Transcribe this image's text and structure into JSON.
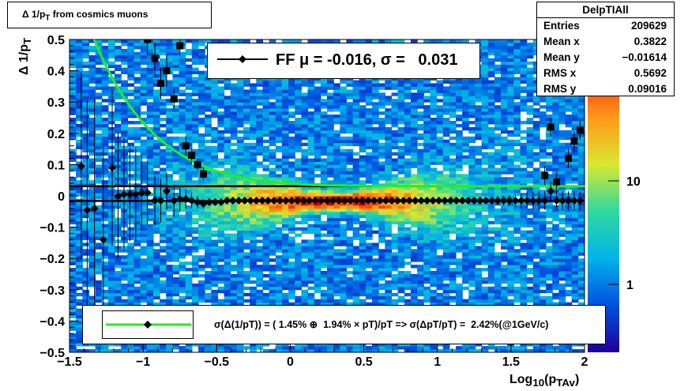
{
  "title": "Δ 1/p<sub>T</sub> from cosmics muons",
  "stats": {
    "name": "DelpTIAll",
    "rows": [
      {
        "label": "Entries",
        "value": "209629"
      },
      {
        "label": "Mean x",
        "value": "0.3822"
      },
      {
        "label": "Mean y",
        "value": "−0.01614"
      },
      {
        "label": "RMS x",
        "value": "0.5692"
      },
      {
        "label": "RMS y",
        "value": "0.09016"
      }
    ]
  },
  "ff_legend": "FF μ = -0.016, σ =   0.031",
  "res_legend": "σ(Δ(1/pT)) = ( 1.45% ⊕  1.94% × pT)/pT => σ(ΔpT/pT) =  2.42%(@1GeV/c)",
  "colors": {
    "sigma_curve": "#22ee22",
    "markers": "#000000"
  },
  "chart_data": {
    "type": "heatmap",
    "xlabel": "Log<sub>10</sub>(p<sub>TAv</sub>)",
    "ylabel": "Δ 1/p<sub>T</sub>",
    "xlim": [
      -1.5,
      2
    ],
    "ylim": [
      -0.5,
      0.5
    ],
    "x_ticks": [
      "−1.5",
      "−1",
      "−0.5",
      "0",
      "0.5",
      "1",
      "1.5",
      "2"
    ],
    "y_ticks": [
      "−0.5",
      "−0.4",
      "−0.3",
      "−0.2",
      "−0.1",
      "0",
      "0.1",
      "0.2",
      "0.3",
      "0.4",
      "0.5"
    ],
    "z_scale": "log",
    "z_ticks": [
      "1",
      "10"
    ],
    "mean_line_y": -0.016,
    "sigma_line_y": 0.031,
    "mean_points": {
      "x": [
        -1.42,
        -1.38,
        -1.33,
        -1.27,
        -1.21,
        -1.17,
        -1.13,
        -1.09,
        -1.05,
        -1.01,
        -0.97,
        -0.92,
        -0.88,
        -0.84,
        -0.79,
        -0.75,
        -0.71,
        -0.67,
        -0.63,
        -0.59,
        -0.55,
        -0.51,
        -0.47,
        -0.43,
        -0.39,
        -0.35,
        -0.31,
        -0.27,
        -0.23,
        -0.19,
        -0.15,
        -0.11,
        -0.07,
        -0.03,
        0.01,
        0.05,
        0.09,
        0.13,
        0.17,
        0.21,
        0.25,
        0.29,
        0.33,
        0.37,
        0.41,
        0.45,
        0.49,
        0.53,
        0.57,
        0.61,
        0.65,
        0.69,
        0.73,
        0.77,
        0.81,
        0.85,
        0.89,
        0.93,
        0.97,
        1.01,
        1.05,
        1.09,
        1.13,
        1.17,
        1.21,
        1.25,
        1.29,
        1.33,
        1.37,
        1.41,
        1.45,
        1.49,
        1.53,
        1.57,
        1.61,
        1.65,
        1.69,
        1.73,
        1.77,
        1.81,
        1.85,
        1.89,
        1.93,
        1.97
      ],
      "y": [
        0.095,
        -0.045,
        -0.04,
        -0.14,
        0.09,
        0.0,
        0.005,
        0.005,
        0.005,
        0.01,
        0.01,
        -0.015,
        -0.015,
        0.015,
        -0.015,
        -0.01,
        -0.01,
        -0.015,
        -0.02,
        -0.025,
        -0.02,
        -0.02,
        -0.02,
        -0.015,
        -0.015,
        -0.015,
        -0.015,
        -0.015,
        -0.015,
        -0.015,
        -0.015,
        -0.015,
        -0.015,
        -0.015,
        -0.015,
        -0.015,
        -0.015,
        -0.015,
        -0.015,
        -0.015,
        -0.015,
        -0.015,
        -0.015,
        -0.015,
        -0.015,
        -0.015,
        -0.015,
        -0.015,
        -0.015,
        -0.015,
        -0.015,
        -0.015,
        -0.015,
        -0.015,
        -0.015,
        -0.015,
        -0.015,
        -0.015,
        -0.015,
        -0.015,
        -0.015,
        -0.015,
        -0.015,
        -0.015,
        -0.015,
        -0.015,
        -0.015,
        -0.015,
        -0.015,
        -0.015,
        -0.015,
        -0.015,
        -0.015,
        -0.015,
        -0.015,
        -0.015,
        -0.015,
        -0.015,
        0.015,
        -0.015,
        -0.015,
        -0.015,
        -0.015,
        -0.015
      ],
      "yerr": [
        0.3,
        0.35,
        0.35,
        0.3,
        0.25,
        0.2,
        0.18,
        0.15,
        0.15,
        0.12,
        0.1,
        0.08,
        0.07,
        0.06,
        0.05,
        0.04,
        0.03,
        0.025,
        0.02,
        0.015,
        0.012,
        0.01,
        0.01,
        0.008,
        0.008,
        0.006,
        0.006,
        0.006,
        0.005,
        0.005,
        0.005,
        0.005,
        0.005,
        0.005,
        0.005,
        0.005,
        0.005,
        0.005,
        0.005,
        0.005,
        0.005,
        0.005,
        0.005,
        0.005,
        0.005,
        0.005,
        0.005,
        0.005,
        0.005,
        0.005,
        0.005,
        0.005,
        0.005,
        0.006,
        0.006,
        0.006,
        0.006,
        0.007,
        0.007,
        0.008,
        0.008,
        0.008,
        0.009,
        0.01,
        0.01,
        0.01,
        0.012,
        0.012,
        0.014,
        0.015,
        0.016,
        0.018,
        0.02,
        0.022,
        0.025,
        0.028,
        0.03,
        0.03,
        0.03,
        0.03,
        0.03,
        0.03,
        0.03,
        0.03
      ]
    },
    "sigma_points": {
      "x": [
        -0.97,
        -0.92,
        -0.88,
        -0.84,
        -0.79,
        -0.75,
        -0.71,
        -0.67,
        -0.63,
        -0.59,
        1.73,
        1.77,
        1.81,
        1.89,
        1.93,
        1.97
      ],
      "y": [
        0.5,
        0.44,
        0.36,
        0.4,
        0.31,
        0.48,
        0.16,
        0.13,
        0.1,
        0.07,
        0.065,
        0.22,
        0.045,
        0.12,
        0.175,
        0.21
      ],
      "yerr": [
        0.05,
        0.05,
        0.05,
        0.05,
        0.03,
        0.03,
        0.03,
        0.02,
        0.02,
        0.02,
        0.03,
        0.03,
        0.03,
        0.03,
        0.03,
        0.03
      ]
    }
  }
}
